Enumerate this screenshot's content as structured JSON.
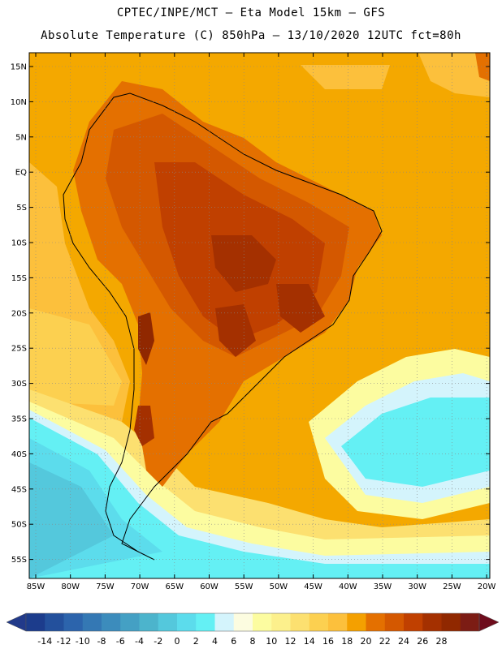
{
  "title_line1": "CPTEC/INPE/MCT –  Eta Model 15km – GFS",
  "title_line2": "Absolute Temperature (C) 850hPa – 13/10/2020 12UTC fct=80h",
  "lat_labels": [
    "15N",
    "10N",
    "5N",
    "EQ",
    "5S",
    "10S",
    "15S",
    "20S",
    "25S",
    "30S",
    "35S",
    "40S",
    "45S",
    "50S",
    "55S"
  ],
  "lon_labels": [
    "85W",
    "80W",
    "75W",
    "70W",
    "65W",
    "60W",
    "55W",
    "50W",
    "45W",
    "40W",
    "35W",
    "30W",
    "25W",
    "20W"
  ],
  "colorbar": {
    "labels": [
      "-14",
      "-12",
      "-10",
      "-8",
      "-6",
      "-4",
      "-2",
      "0",
      "2",
      "4",
      "6",
      "8",
      "10",
      "12",
      "14",
      "16",
      "18",
      "20",
      "22",
      "24",
      "26",
      "28"
    ],
    "colors": [
      "#1c3c8c",
      "#23509c",
      "#2c64ac",
      "#3478b4",
      "#3c8cbc",
      "#44a0c4",
      "#4cb4cc",
      "#54c8dc",
      "#5cdcec",
      "#64f0f4",
      "#d4f4fc",
      "#fcfce0",
      "#fcfca0",
      "#fcf08c",
      "#fce070",
      "#fcd050",
      "#fcc03c",
      "#f4a000",
      "#e47000",
      "#d45800",
      "#c04000",
      "#a43000",
      "#902800",
      "#7c1c14"
    ],
    "min_color": "#223a8a",
    "max_color": "#6e0c1c"
  }
}
